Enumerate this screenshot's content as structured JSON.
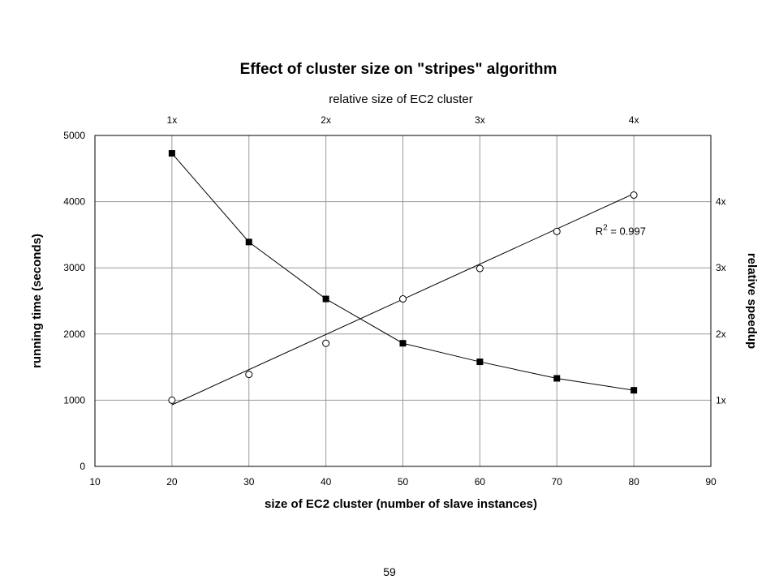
{
  "chart_data": {
    "type": "line",
    "title": "Effect of cluster size on \"stripes\" algorithm",
    "xlabel": "size of EC2 cluster (number of slave instances)",
    "ylabel": "running time (seconds)",
    "top_xlabel": "relative size of EC2 cluster",
    "right_ylabel": "relative speedup",
    "xlim": [
      10,
      90
    ],
    "ylim": [
      0,
      5000
    ],
    "x_ticks": [
      "10",
      "20",
      "30",
      "40",
      "50",
      "60",
      "70",
      "80",
      "90"
    ],
    "y_ticks": [
      "0",
      "1000",
      "2000",
      "3000",
      "4000",
      "5000"
    ],
    "top_ticks": [
      {
        "x": 20,
        "label": "1x"
      },
      {
        "x": 40,
        "label": "2x"
      },
      {
        "x": 60,
        "label": "3x"
      },
      {
        "x": 80,
        "label": "4x"
      }
    ],
    "right_ticks": [
      {
        "y": 1000,
        "label": "1x"
      },
      {
        "y": 2000,
        "label": "2x"
      },
      {
        "y": 3000,
        "label": "3x"
      },
      {
        "y": 4000,
        "label": "4x"
      }
    ],
    "grid": true,
    "series": [
      {
        "marker": "filled-square",
        "x": [
          20,
          30,
          40,
          50,
          60,
          70,
          80
        ],
        "y": [
          4730,
          3390,
          2530,
          1860,
          1580,
          1330,
          1150
        ],
        "line": "connect"
      },
      {
        "marker": "open-circle",
        "x": [
          20,
          30,
          40,
          50,
          60,
          70,
          80
        ],
        "y": [
          1000,
          1390,
          1860,
          2530,
          2990,
          3550,
          4100
        ],
        "line": "linear-fit",
        "fit_y_at_xmin": 930,
        "fit_y_at_xmax": 4120
      }
    ],
    "annotation": {
      "text_base": "R",
      "superscript": "2",
      "text_rest": " = 0.997",
      "x": 75,
      "y": 3500
    }
  },
  "page_number": "59"
}
